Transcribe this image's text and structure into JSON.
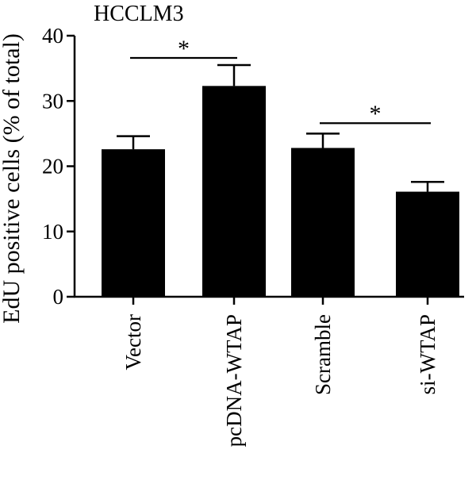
{
  "chart_data": {
    "type": "bar",
    "title": "HCCLM3",
    "ylabel": "EdU positive cells (% of total)",
    "xlabel": "",
    "ylim": [
      0,
      40
    ],
    "yticks": [
      0,
      10,
      20,
      30,
      40
    ],
    "categories": [
      "Vector",
      "pcDNA-WTAP",
      "Scramble",
      "si-WTAP"
    ],
    "values": [
      22.6,
      32.3,
      22.8,
      16.1
    ],
    "errors": [
      2.0,
      3.2,
      2.2,
      1.5
    ],
    "bar_color": "#000000",
    "significance": [
      {
        "from": "Vector",
        "to": "pcDNA-WTAP",
        "label": "*",
        "y": 36.6
      },
      {
        "from": "Scramble",
        "to": "si-WTAP",
        "label": "*",
        "y": 26.6
      }
    ]
  }
}
